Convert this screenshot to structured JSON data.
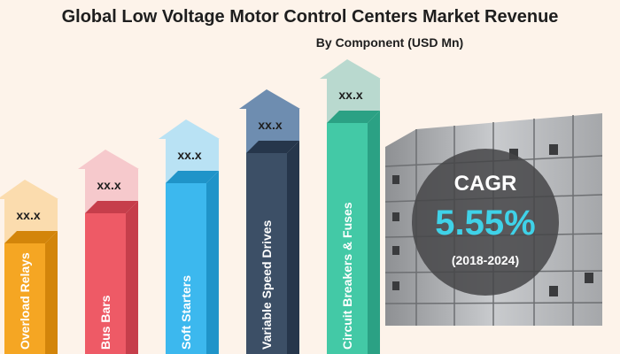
{
  "title": "Global Low Voltage Motor Control Centers Market Revenue",
  "subtitle": "By Component (USD Mn)",
  "cagr": {
    "label": "CAGR",
    "value": "5.55%",
    "period": "(2018-2024)"
  },
  "colors": {
    "background": "#fdf3ea",
    "cagr_value": "#3fd2e8"
  },
  "chart_data": {
    "type": "bar",
    "categories": [
      "Overload Relays",
      "Bus Bars",
      "Soft Starters",
      "Variable Speed Drives",
      "Circuit Breakers & Fuses"
    ],
    "value_labels": [
      "xx.x",
      "xx.x",
      "xx.x",
      "xx.x",
      "xx.x"
    ],
    "series": [
      {
        "rank": [
          1,
          2,
          3,
          4,
          5
        ],
        "colors": [
          {
            "front": "#f5a623",
            "side": "#d3850a",
            "arrow": "#fbdcae"
          },
          {
            "front": "#ee5a66",
            "side": "#c63e4b",
            "arrow": "#f6c9cc"
          },
          {
            "front": "#3cb8ee",
            "side": "#1f94c9",
            "arrow": "#b9e2f4"
          },
          {
            "front": "#3c4f66",
            "side": "#26364b",
            "arrow": "#6e8db0"
          },
          {
            "front": "#43c9a6",
            "side": "#2ba184",
            "arrow": "#b9d9cf"
          }
        ]
      }
    ],
    "xlabel": "",
    "ylabel": "",
    "legend": "none"
  }
}
